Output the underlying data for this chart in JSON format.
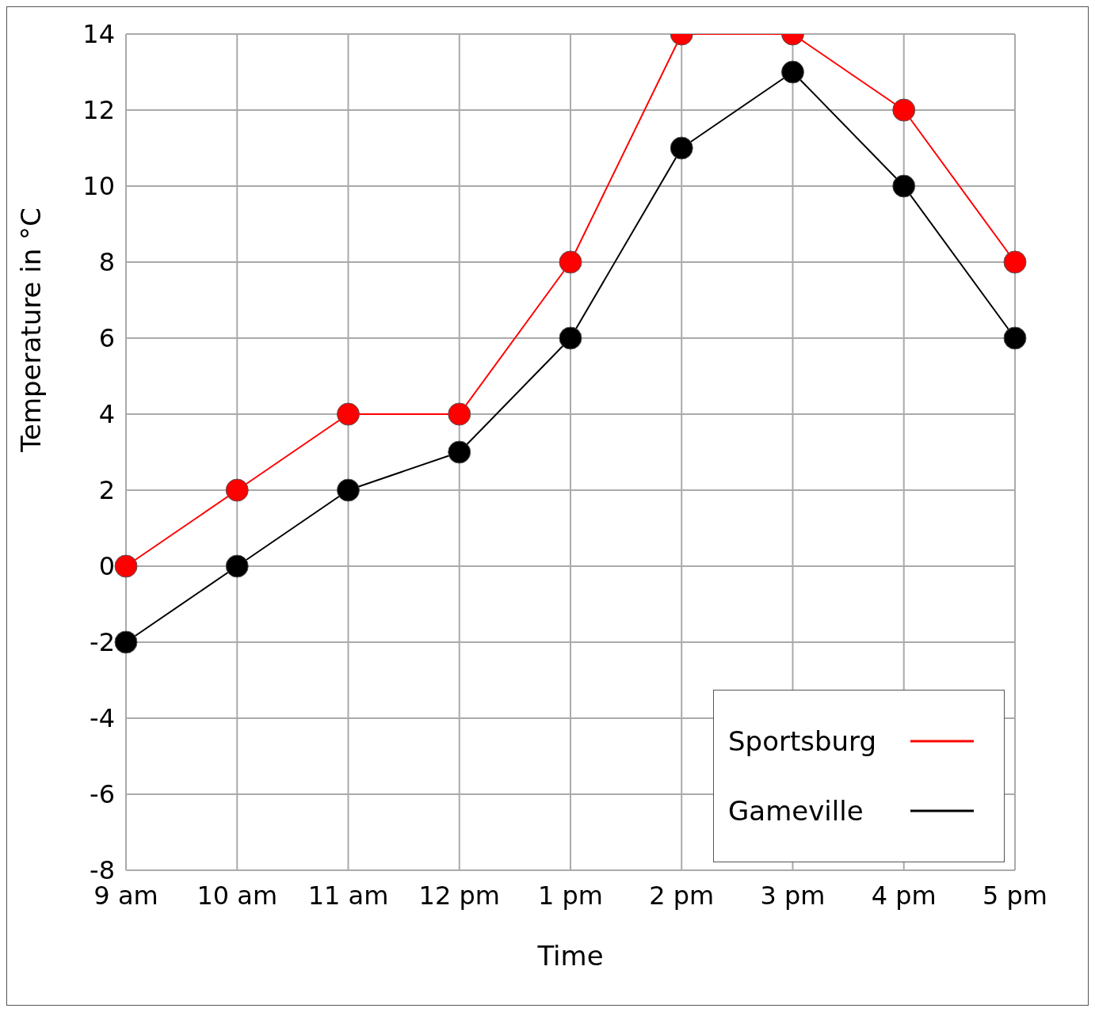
{
  "chart_data": {
    "type": "line",
    "xlabel": "Time",
    "ylabel": "Temperature in °C",
    "categories": [
      "9 am",
      "10 am",
      "11 am",
      "12 pm",
      "1 pm",
      "2 pm",
      "3 pm",
      "4 pm",
      "5 pm"
    ],
    "series": [
      {
        "name": "Sportsburg",
        "color": "#ff0000",
        "values": [
          0,
          2,
          4,
          4,
          8,
          14,
          14,
          12,
          8
        ]
      },
      {
        "name": "Gameville",
        "color": "#000000",
        "values": [
          -2,
          0,
          2,
          3,
          6,
          11,
          13,
          10,
          6
        ]
      }
    ],
    "ylim": [
      -8,
      14
    ],
    "yticks": [
      -8,
      -6,
      -4,
      -2,
      0,
      2,
      4,
      6,
      8,
      10,
      12,
      14
    ],
    "grid": true,
    "legend": "bottom right",
    "marker": "circle",
    "line_style": "solid"
  }
}
